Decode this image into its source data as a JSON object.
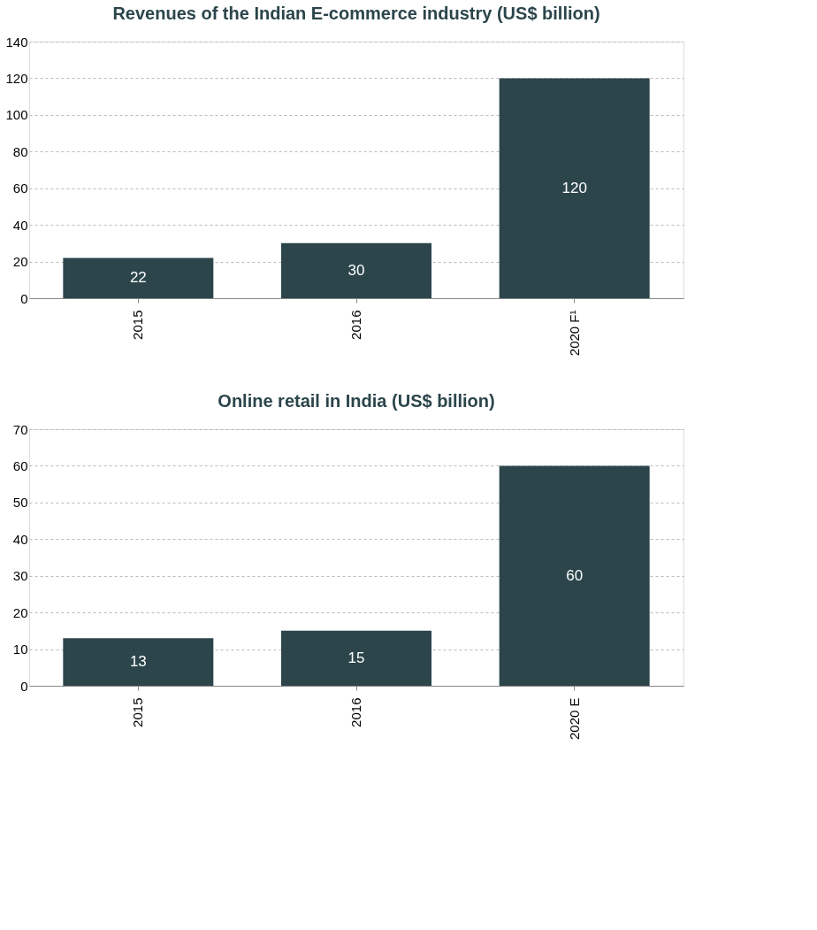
{
  "chart_data": [
    {
      "type": "bar",
      "title": "Revenues of the Indian E-commerce industry (US$ billion)",
      "categories": [
        "2015",
        "2016",
        "2020 F¹"
      ],
      "values": [
        22,
        30,
        120
      ],
      "color": "#2b454b",
      "ylim": [
        0,
        140
      ],
      "yticks": [
        0,
        20,
        40,
        60,
        80,
        100,
        120,
        140
      ],
      "grid": "y",
      "data_labels": true
    },
    {
      "type": "bar",
      "title": "Online retail in India (US$ billion)",
      "categories": [
        "2015",
        "2016",
        "2020 E"
      ],
      "values": [
        13,
        15,
        60
      ],
      "color": "#2b454b",
      "ylim": [
        0,
        70
      ],
      "yticks": [
        0,
        10,
        20,
        30,
        40,
        50,
        60,
        70
      ],
      "grid": "y",
      "data_labels": true
    }
  ]
}
